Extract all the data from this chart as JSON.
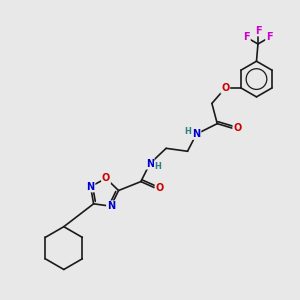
{
  "bg_color": "#e8e8e8",
  "bond_color": "#1a1a1a",
  "N_color": "#0000cc",
  "O_color": "#cc0000",
  "F_color": "#cc00cc",
  "H_color": "#2f8080",
  "font_size_atom": 7.0,
  "line_width": 1.2,
  "figsize": [
    3.0,
    3.0
  ],
  "dpi": 100,
  "xlim": [
    0,
    10
  ],
  "ylim": [
    0,
    10
  ]
}
